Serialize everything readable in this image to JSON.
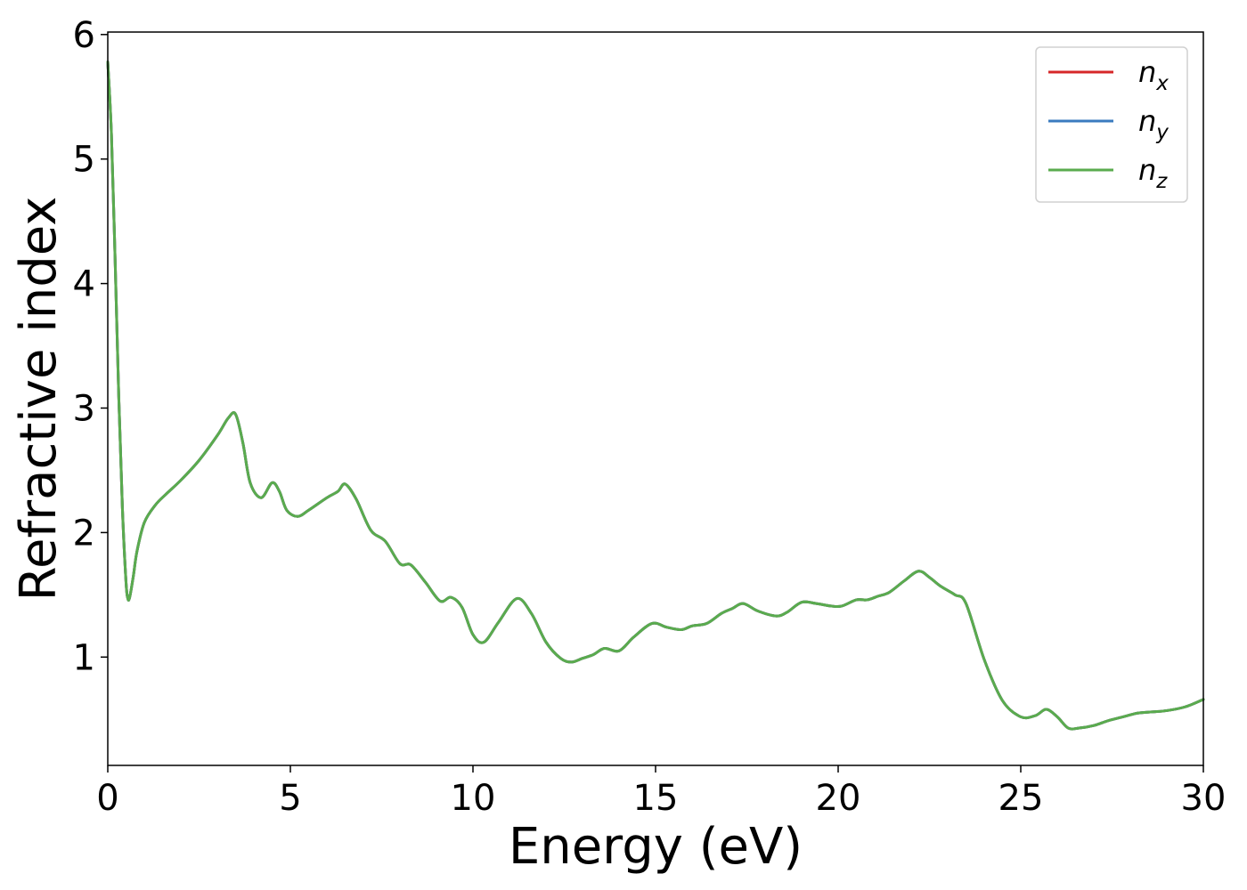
{
  "chart_data": {
    "type": "line",
    "xlabel": "Energy (eV)",
    "ylabel": "Refractive index",
    "xlim": [
      0,
      30
    ],
    "ylim": [
      0.13,
      6.02
    ],
    "xticks": [
      0,
      5,
      10,
      15,
      20,
      25,
      30
    ],
    "yticks": [
      1,
      2,
      3,
      4,
      5,
      6
    ],
    "grid": false,
    "legend_position": "top-right",
    "series": [
      {
        "name": "n_x",
        "label_base": "n",
        "label_sub": "x",
        "color": "#d62728",
        "x": [
          0.0,
          0.1,
          0.2,
          0.3,
          0.4,
          0.5,
          0.55,
          0.6,
          0.7,
          0.8,
          1.0,
          1.3,
          1.6,
          2.0,
          2.5,
          3.0,
          3.3,
          3.5,
          3.7,
          3.9,
          4.2,
          4.5,
          4.7,
          4.9,
          5.2,
          5.5,
          6.0,
          6.3,
          6.5,
          6.8,
          7.2,
          7.6,
          8.0,
          8.3,
          8.7,
          9.1,
          9.4,
          9.7,
          10.0,
          10.3,
          10.7,
          11.2,
          11.6,
          12.0,
          12.4,
          12.7,
          13.0,
          13.3,
          13.6,
          14.0,
          14.4,
          14.9,
          15.3,
          15.7,
          16.0,
          16.4,
          16.8,
          17.1,
          17.4,
          17.8,
          18.3,
          18.6,
          19.0,
          19.4,
          19.8,
          20.1,
          20.5,
          20.8,
          21.1,
          21.4,
          21.8,
          22.2,
          22.5,
          22.8,
          23.2,
          23.5,
          24.0,
          24.5,
          25.0,
          25.4,
          25.7,
          26.0,
          26.3,
          26.6,
          27.0,
          27.4,
          27.8,
          28.2,
          28.6,
          29.0,
          29.5,
          30.0
        ],
        "values": [
          5.78,
          5.2,
          4.2,
          3.1,
          2.2,
          1.6,
          1.47,
          1.48,
          1.65,
          1.85,
          2.08,
          2.22,
          2.31,
          2.42,
          2.58,
          2.78,
          2.92,
          2.95,
          2.72,
          2.4,
          2.28,
          2.4,
          2.33,
          2.18,
          2.13,
          2.18,
          2.28,
          2.33,
          2.39,
          2.27,
          2.02,
          1.93,
          1.75,
          1.74,
          1.6,
          1.45,
          1.48,
          1.4,
          1.18,
          1.12,
          1.28,
          1.47,
          1.35,
          1.12,
          0.99,
          0.96,
          0.99,
          1.02,
          1.07,
          1.05,
          1.16,
          1.27,
          1.24,
          1.22,
          1.25,
          1.27,
          1.35,
          1.39,
          1.43,
          1.37,
          1.33,
          1.36,
          1.44,
          1.43,
          1.41,
          1.41,
          1.46,
          1.46,
          1.49,
          1.52,
          1.61,
          1.69,
          1.64,
          1.57,
          1.5,
          1.43,
          0.98,
          0.65,
          0.52,
          0.53,
          0.58,
          0.52,
          0.43,
          0.43,
          0.45,
          0.49,
          0.52,
          0.55,
          0.56,
          0.57,
          0.6,
          0.66
        ]
      },
      {
        "name": "n_y",
        "label_base": "n",
        "label_sub": "y",
        "color": "#3a7bbf",
        "x": [
          0.0,
          0.1,
          0.2,
          0.3,
          0.4,
          0.5,
          0.55,
          0.6,
          0.7,
          0.8,
          1.0,
          1.3,
          1.6,
          2.0,
          2.5,
          3.0,
          3.3,
          3.5,
          3.7,
          3.9,
          4.2,
          4.5,
          4.7,
          4.9,
          5.2,
          5.5,
          6.0,
          6.3,
          6.5,
          6.8,
          7.2,
          7.6,
          8.0,
          8.3,
          8.7,
          9.1,
          9.4,
          9.7,
          10.0,
          10.3,
          10.7,
          11.2,
          11.6,
          12.0,
          12.4,
          12.7,
          13.0,
          13.3,
          13.6,
          14.0,
          14.4,
          14.9,
          15.3,
          15.7,
          16.0,
          16.4,
          16.8,
          17.1,
          17.4,
          17.8,
          18.3,
          18.6,
          19.0,
          19.4,
          19.8,
          20.1,
          20.5,
          20.8,
          21.1,
          21.4,
          21.8,
          22.2,
          22.5,
          22.8,
          23.2,
          23.5,
          24.0,
          24.5,
          25.0,
          25.4,
          25.7,
          26.0,
          26.3,
          26.6,
          27.0,
          27.4,
          27.8,
          28.2,
          28.6,
          29.0,
          29.5,
          30.0
        ],
        "values": [
          5.78,
          5.2,
          4.2,
          3.1,
          2.2,
          1.6,
          1.47,
          1.48,
          1.65,
          1.85,
          2.08,
          2.22,
          2.31,
          2.42,
          2.58,
          2.78,
          2.92,
          2.95,
          2.72,
          2.4,
          2.28,
          2.4,
          2.33,
          2.18,
          2.13,
          2.18,
          2.28,
          2.33,
          2.39,
          2.27,
          2.02,
          1.93,
          1.75,
          1.74,
          1.6,
          1.45,
          1.48,
          1.4,
          1.18,
          1.12,
          1.28,
          1.47,
          1.35,
          1.12,
          0.99,
          0.96,
          0.99,
          1.02,
          1.07,
          1.05,
          1.16,
          1.27,
          1.24,
          1.22,
          1.25,
          1.27,
          1.35,
          1.39,
          1.43,
          1.37,
          1.33,
          1.36,
          1.44,
          1.43,
          1.41,
          1.41,
          1.46,
          1.46,
          1.49,
          1.52,
          1.61,
          1.69,
          1.64,
          1.57,
          1.5,
          1.43,
          0.98,
          0.65,
          0.52,
          0.53,
          0.58,
          0.52,
          0.43,
          0.43,
          0.45,
          0.49,
          0.52,
          0.55,
          0.56,
          0.57,
          0.6,
          0.66
        ]
      },
      {
        "name": "n_z",
        "label_base": "n",
        "label_sub": "z",
        "color": "#5aab4e",
        "x": [
          0.0,
          0.1,
          0.2,
          0.3,
          0.4,
          0.5,
          0.55,
          0.6,
          0.7,
          0.8,
          1.0,
          1.3,
          1.6,
          2.0,
          2.5,
          3.0,
          3.3,
          3.5,
          3.7,
          3.9,
          4.2,
          4.5,
          4.7,
          4.9,
          5.2,
          5.5,
          6.0,
          6.3,
          6.5,
          6.8,
          7.2,
          7.6,
          8.0,
          8.3,
          8.7,
          9.1,
          9.4,
          9.7,
          10.0,
          10.3,
          10.7,
          11.2,
          11.6,
          12.0,
          12.4,
          12.7,
          13.0,
          13.3,
          13.6,
          14.0,
          14.4,
          14.9,
          15.3,
          15.7,
          16.0,
          16.4,
          16.8,
          17.1,
          17.4,
          17.8,
          18.3,
          18.6,
          19.0,
          19.4,
          19.8,
          20.1,
          20.5,
          20.8,
          21.1,
          21.4,
          21.8,
          22.2,
          22.5,
          22.8,
          23.2,
          23.5,
          24.0,
          24.5,
          25.0,
          25.4,
          25.7,
          26.0,
          26.3,
          26.6,
          27.0,
          27.4,
          27.8,
          28.2,
          28.6,
          29.0,
          29.5,
          30.0
        ],
        "values": [
          5.78,
          5.2,
          4.2,
          3.1,
          2.2,
          1.6,
          1.47,
          1.48,
          1.65,
          1.85,
          2.08,
          2.22,
          2.31,
          2.42,
          2.58,
          2.78,
          2.92,
          2.95,
          2.72,
          2.4,
          2.28,
          2.4,
          2.33,
          2.18,
          2.13,
          2.18,
          2.28,
          2.33,
          2.39,
          2.27,
          2.02,
          1.93,
          1.75,
          1.74,
          1.6,
          1.45,
          1.48,
          1.4,
          1.18,
          1.12,
          1.28,
          1.47,
          1.35,
          1.12,
          0.99,
          0.96,
          0.99,
          1.02,
          1.07,
          1.05,
          1.16,
          1.27,
          1.24,
          1.22,
          1.25,
          1.27,
          1.35,
          1.39,
          1.43,
          1.37,
          1.33,
          1.36,
          1.44,
          1.43,
          1.41,
          1.41,
          1.46,
          1.46,
          1.49,
          1.52,
          1.61,
          1.69,
          1.64,
          1.57,
          1.5,
          1.43,
          0.98,
          0.65,
          0.52,
          0.53,
          0.58,
          0.52,
          0.43,
          0.43,
          0.45,
          0.49,
          0.52,
          0.55,
          0.56,
          0.57,
          0.6,
          0.66
        ]
      }
    ]
  }
}
